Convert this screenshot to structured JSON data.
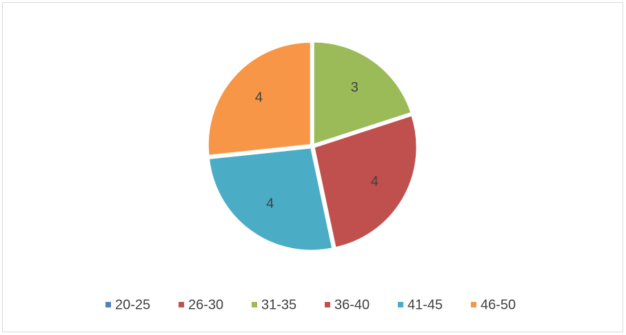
{
  "chart_data": {
    "type": "pie",
    "categories": [
      "20-25",
      "26-30",
      "31-35",
      "36-40",
      "41-45",
      "46-50"
    ],
    "values": [
      0,
      0,
      3,
      4,
      4,
      4
    ],
    "colors": [
      "#4f81bd",
      "#c0504d",
      "#9bbb59",
      "#c0504d",
      "#4bacc6",
      "#f79646"
    ],
    "legend": "bottom"
  }
}
